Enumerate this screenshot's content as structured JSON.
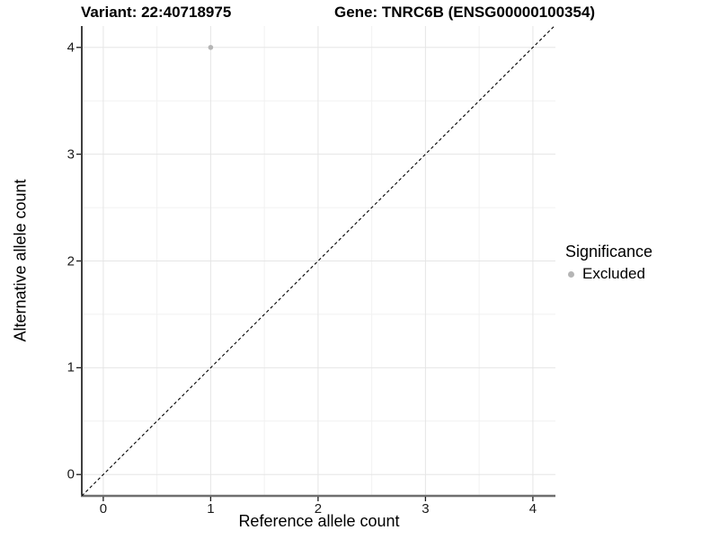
{
  "chart_data": {
    "type": "scatter",
    "titles": {
      "left": "Variant: 22:40718975",
      "right": "Gene: TNRC6B (ENSG00000100354)"
    },
    "xlabel": "Reference allele count",
    "ylabel": "Alternative allele count",
    "xlim": [
      -0.2,
      4.21
    ],
    "ylim": [
      -0.2,
      4.2
    ],
    "x_ticks": [
      0,
      1,
      2,
      3,
      4
    ],
    "y_ticks": [
      0,
      1,
      2,
      3,
      4
    ],
    "x_minor_ticks": [
      0.5,
      1.5,
      2.5,
      3.5
    ],
    "y_minor_ticks": [
      0.5,
      1.5,
      2.5,
      3.5
    ],
    "grid": "major and minor, light gray on white",
    "points": [
      {
        "x": 1,
        "y": 4,
        "series": "Excluded"
      }
    ],
    "reference_line": {
      "type": "identity y=x",
      "style": "dashed",
      "color": "#000000",
      "from": [
        -0.2,
        -0.2
      ],
      "to": [
        4.21,
        4.21
      ]
    },
    "legend": {
      "title": "Significance",
      "position": "right",
      "entries": [
        {
          "label": "Excluded",
          "color": "#b5b5b5"
        }
      ]
    },
    "colors": {
      "point": "#b5b5b5",
      "grid_major": "#e5e5e5",
      "grid_minor": "#f1f1f1",
      "y_axis_line": "#3f3f3f",
      "x_axis_line": "#6f6f6f",
      "tick_mark": "#1a1a1a",
      "background": "#ffffff"
    }
  }
}
